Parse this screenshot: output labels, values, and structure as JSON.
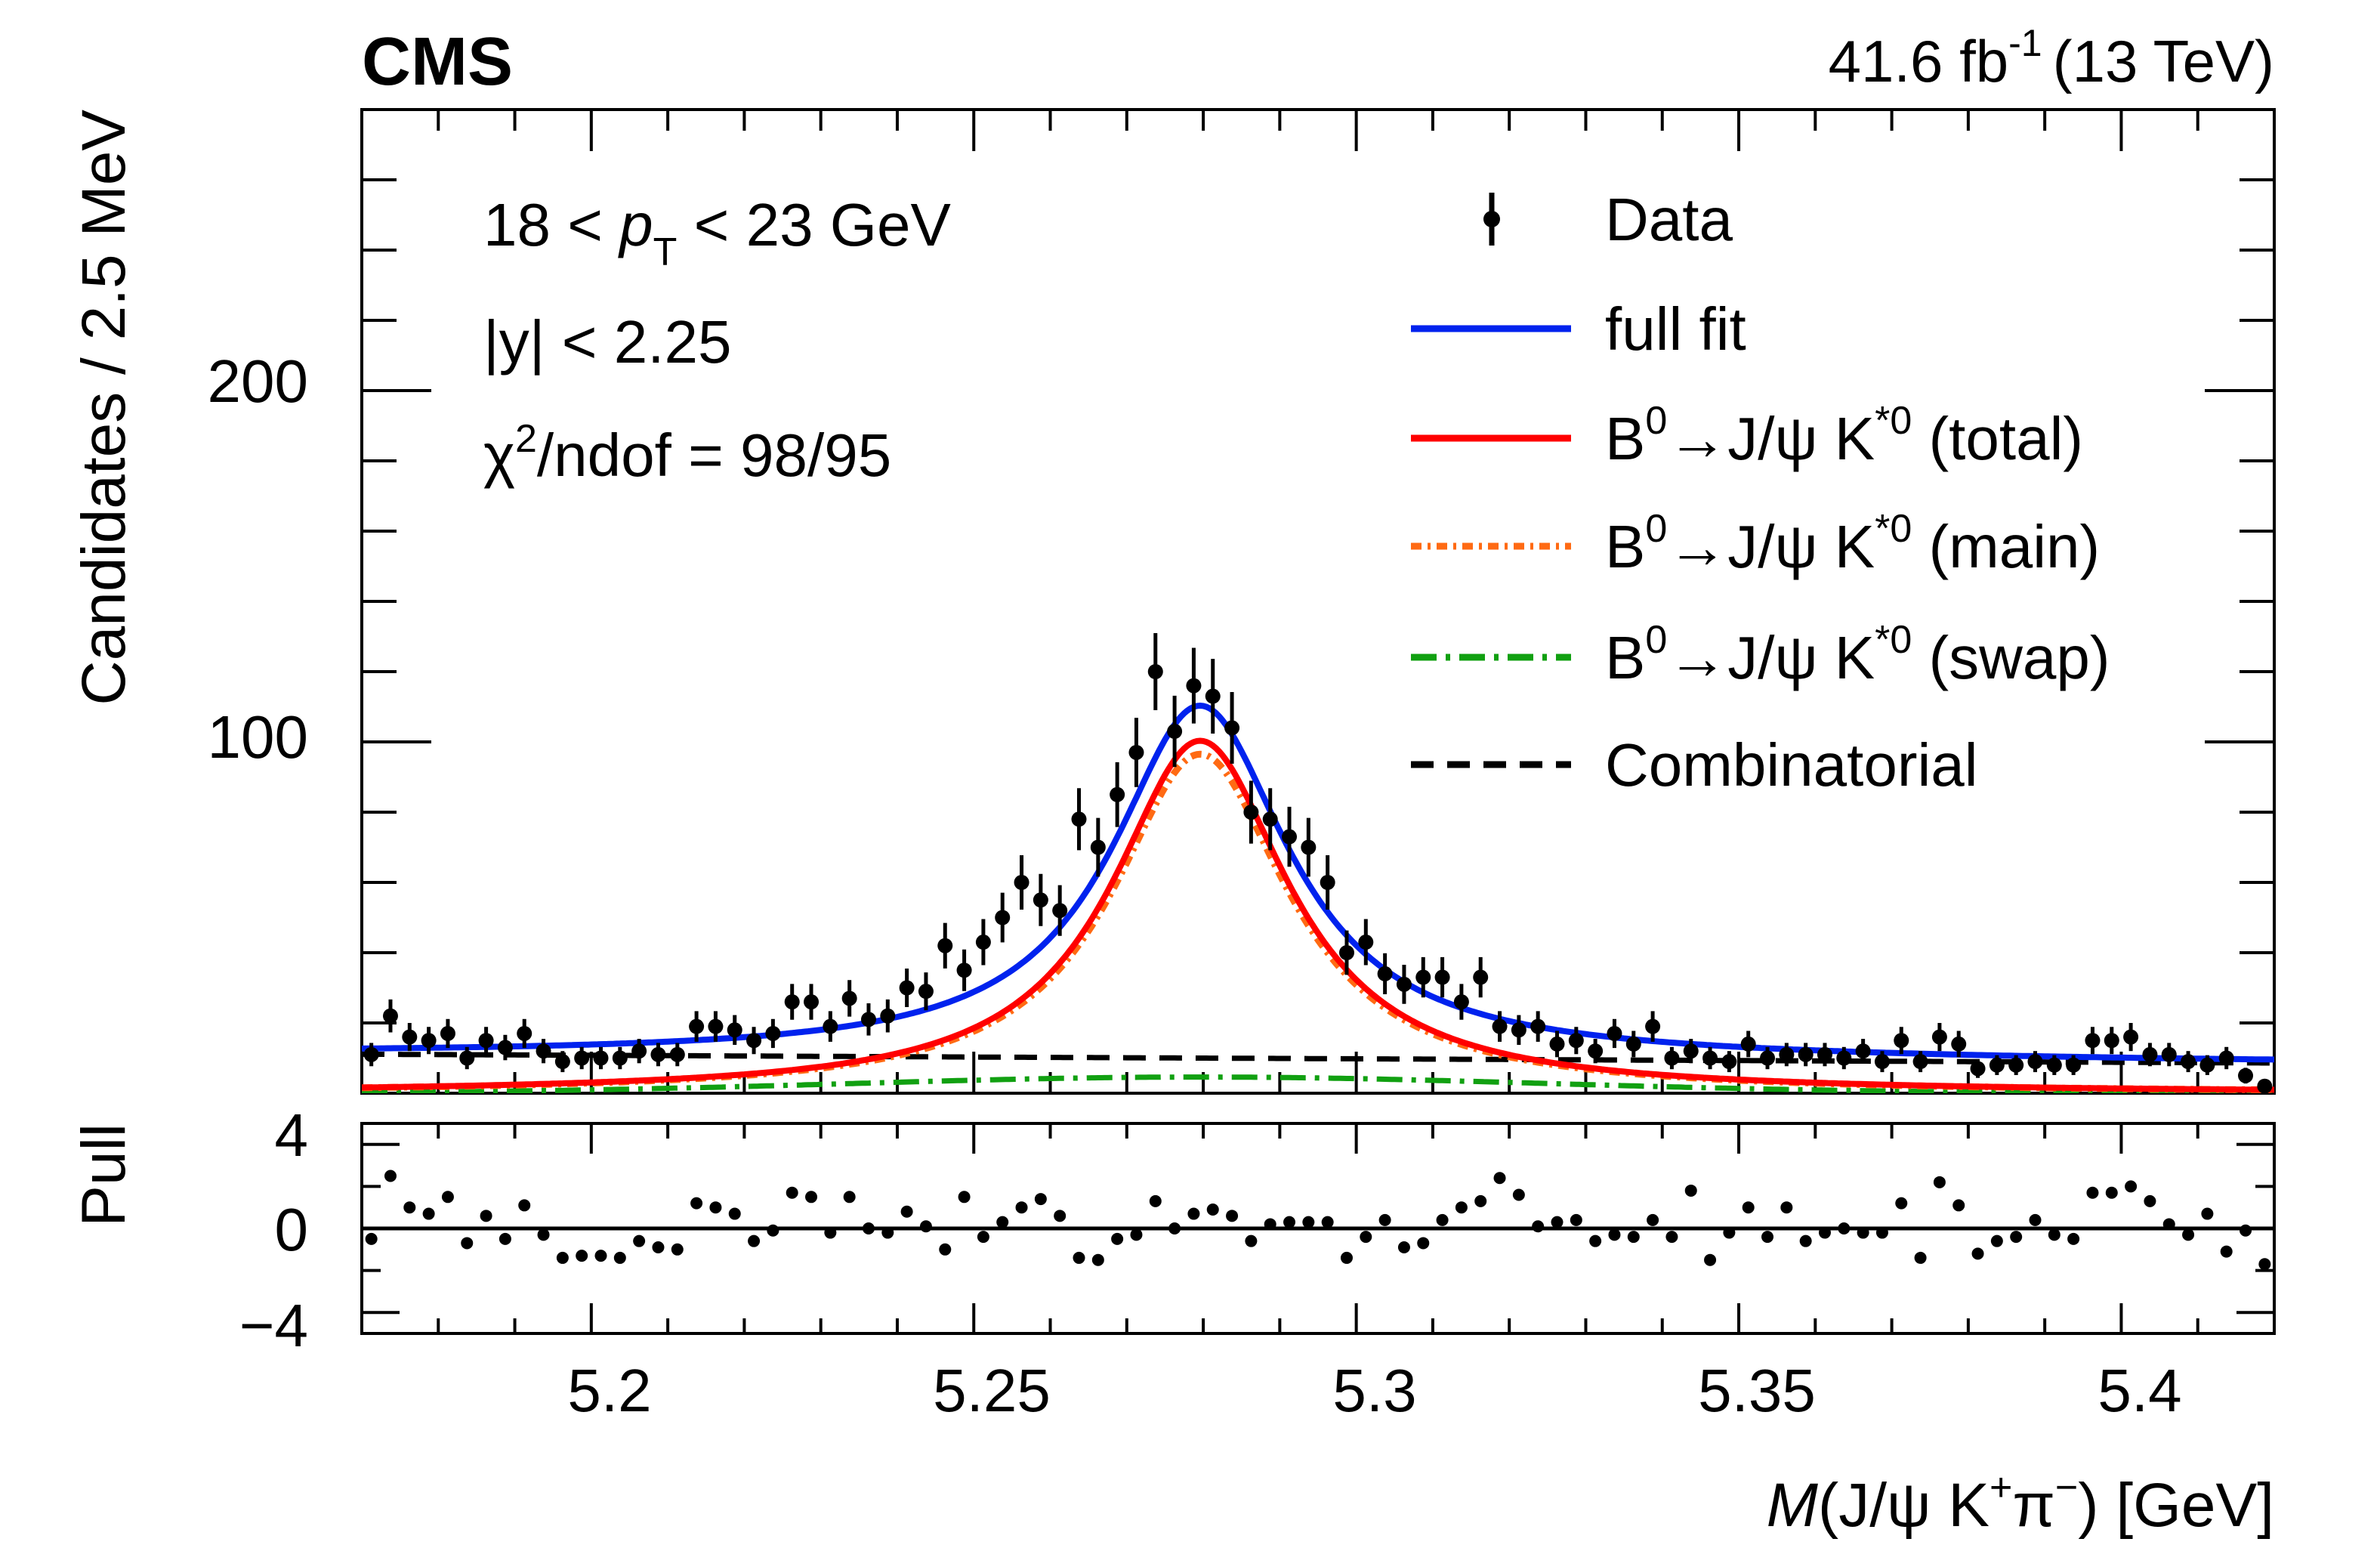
{
  "header": {
    "experiment": "CMS",
    "lumi_value": "41.6 fb",
    "lumi_exp": "-1",
    "energy": "(13 TeV)"
  },
  "info": {
    "pt_pre": "18 < ",
    "pt_p": "p",
    "pt_sub": "T",
    "pt_post": " < 23 GeV",
    "rapidity": "|y| < 2.25",
    "chi_sym": "χ",
    "chi_exp": "2",
    "chi_rest": "/ndof = 98/95"
  },
  "legend": {
    "data": "Data",
    "full_fit": "full fit",
    "sig_prefix": "B",
    "sig_sup0": "0",
    "sig_mid": "→J/ψ K",
    "sig_sup": "*0",
    "total": " (total)",
    "main": " (main)",
    "swap": " (swap)",
    "combinatorial": "Combinatorial"
  },
  "colors": {
    "full_fit": "#0022ee",
    "total": "#ff0000",
    "main": "#ff6a13",
    "swap": "#11a011",
    "combinatorial": "#000000",
    "data": "#000000"
  },
  "axes": {
    "ylabel": "Candidates / 2.5 MeV",
    "pull_label": "Pull",
    "x_M": "M",
    "x_mid": "(J/ψ K",
    "x_plus": "+",
    "x_pi": "π",
    "x_minus": "−",
    "x_end": ") [GeV]"
  },
  "chart_data": {
    "type": "scatter",
    "title": "CMS",
    "xlim": [
      5.17,
      5.42
    ],
    "ylim": [
      0,
      280
    ],
    "pull_ylim": [
      -5,
      5
    ],
    "xticks": [
      5.2,
      5.25,
      5.3,
      5.35,
      5.4
    ],
    "xtick_labels": [
      "5.2",
      "5.25",
      "5.3",
      "5.35",
      "5.4"
    ],
    "yticks": [
      100,
      200
    ],
    "ytick_labels": [
      "100",
      "200"
    ],
    "pull_yticks": [
      -4,
      0,
      4
    ],
    "pull_ytick_labels": [
      "−4",
      "0",
      "4"
    ],
    "bin_width": 0.0025,
    "x_first_bin": 5.17125,
    "counts": [
      11,
      22,
      16,
      15,
      17,
      10,
      15,
      13,
      17,
      12,
      9,
      10,
      10,
      10,
      12,
      11,
      11,
      19,
      19,
      18,
      15,
      17,
      26,
      26,
      19,
      27,
      21,
      22,
      30,
      29,
      42,
      35,
      43,
      50,
      60,
      55,
      52,
      78,
      70,
      85,
      97,
      120,
      103,
      116,
      113,
      104,
      80,
      78,
      73,
      70,
      60,
      40,
      43,
      34,
      31,
      33,
      33,
      26,
      33,
      19,
      18,
      19,
      14,
      15,
      12,
      17,
      14,
      19,
      10,
      12,
      10,
      9,
      14,
      10,
      11,
      11,
      11,
      10,
      12,
      9,
      15,
      9,
      16,
      14,
      7,
      8,
      8,
      9,
      8,
      8,
      15,
      15,
      16,
      11,
      11,
      9,
      8,
      10,
      5,
      2
    ],
    "pulls": [
      -0.5,
      2.5,
      1.0,
      0.7,
      1.5,
      -0.7,
      0.6,
      -0.5,
      1.1,
      -0.3,
      -1.4,
      -1.3,
      -1.3,
      -1.4,
      -0.6,
      -0.9,
      -1.0,
      1.2,
      1.0,
      0.7,
      -0.6,
      -0.1,
      1.7,
      1.5,
      -0.2,
      1.5,
      0.0,
      -0.2,
      0.8,
      0.1,
      -1.0,
      1.5,
      -0.4,
      0.3,
      1.0,
      1.4,
      0.6,
      -1.4,
      -1.5,
      -0.5,
      -0.3,
      1.3,
      0.0,
      0.7,
      0.9,
      0.6,
      -0.6,
      0.2,
      0.3,
      0.3,
      0.3,
      -1.4,
      -0.4,
      0.4,
      -0.9,
      -0.7,
      0.4,
      1.0,
      1.3,
      2.4,
      1.6,
      0.1,
      0.3,
      0.4,
      -0.6,
      -0.3,
      -0.4,
      0.4,
      -0.4,
      1.8,
      -1.5,
      -0.2,
      1.0,
      -0.4,
      1.0,
      -0.6,
      -0.2,
      0.0,
      -0.2,
      -0.2,
      1.2,
      -1.4,
      2.2,
      1.1,
      -1.2,
      -0.6,
      -0.4,
      0.4,
      -0.3,
      -0.5,
      1.7,
      1.7,
      2.0,
      1.3,
      0.2,
      -0.3,
      0.7,
      -1.1,
      -0.1,
      -1.7
    ],
    "fit": {
      "mass": 5.2796,
      "signal_total_peak": 100,
      "signal_main_peak": 96.5,
      "signal_gamma": 0.014,
      "swap_peak": 4.6,
      "swap_sigma": 0.045,
      "combinatorial_level": 10,
      "combinatorial_slope": -10
    },
    "series": [
      {
        "name": "Data"
      },
      {
        "name": "full fit"
      },
      {
        "name": "B0→J/ψ K*0 (total)"
      },
      {
        "name": "B0→J/ψ K*0 (main)"
      },
      {
        "name": "B0→J/ψ K*0 (swap)"
      },
      {
        "name": "Combinatorial"
      }
    ]
  }
}
